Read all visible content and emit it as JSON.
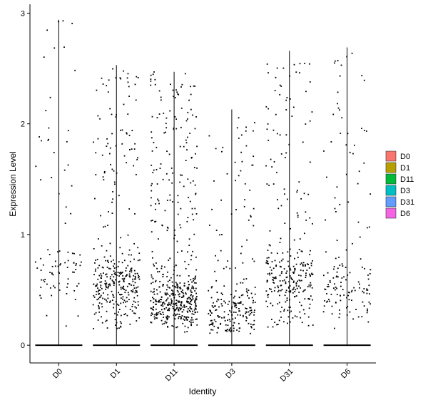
{
  "chart_data": {
    "type": "violin-jitter",
    "xlabel": "Identity",
    "ylabel": "Expression Level",
    "ylim": [
      -0.16,
      3.08
    ],
    "yticks": [
      0,
      1,
      2,
      3
    ],
    "categories": [
      "D0",
      "D1",
      "D11",
      "D3",
      "D31",
      "D6"
    ],
    "legend": {
      "position": "right",
      "entries": [
        {
          "name": "D0",
          "color": "#F8766D"
        },
        {
          "name": "D1",
          "color": "#B79F00"
        },
        {
          "name": "D11",
          "color": "#00BA38"
        },
        {
          "name": "D3",
          "color": "#00BFC4"
        },
        {
          "name": "D31",
          "color": "#619CFF"
        },
        {
          "name": "D6",
          "color": "#F564E3"
        }
      ]
    },
    "groups": [
      {
        "name": "D0",
        "max": 2.94,
        "n_nonzero": 90,
        "core_low": 0.5,
        "core_high": 0.8
      },
      {
        "name": "D1",
        "max": 2.53,
        "n_nonzero": 360,
        "core_low": 0.4,
        "core_high": 0.7
      },
      {
        "name": "D11",
        "max": 2.47,
        "n_nonzero": 520,
        "core_low": 0.25,
        "core_high": 0.55
      },
      {
        "name": "D3",
        "max": 2.13,
        "n_nonzero": 230,
        "core_low": 0.15,
        "core_high": 0.45
      },
      {
        "name": "D31",
        "max": 2.66,
        "n_nonzero": 300,
        "core_low": 0.4,
        "core_high": 0.75
      },
      {
        "name": "D6",
        "max": 2.69,
        "n_nonzero": 150,
        "core_low": 0.3,
        "core_high": 0.7
      }
    ],
    "point_color": "#000000",
    "grid": false
  }
}
